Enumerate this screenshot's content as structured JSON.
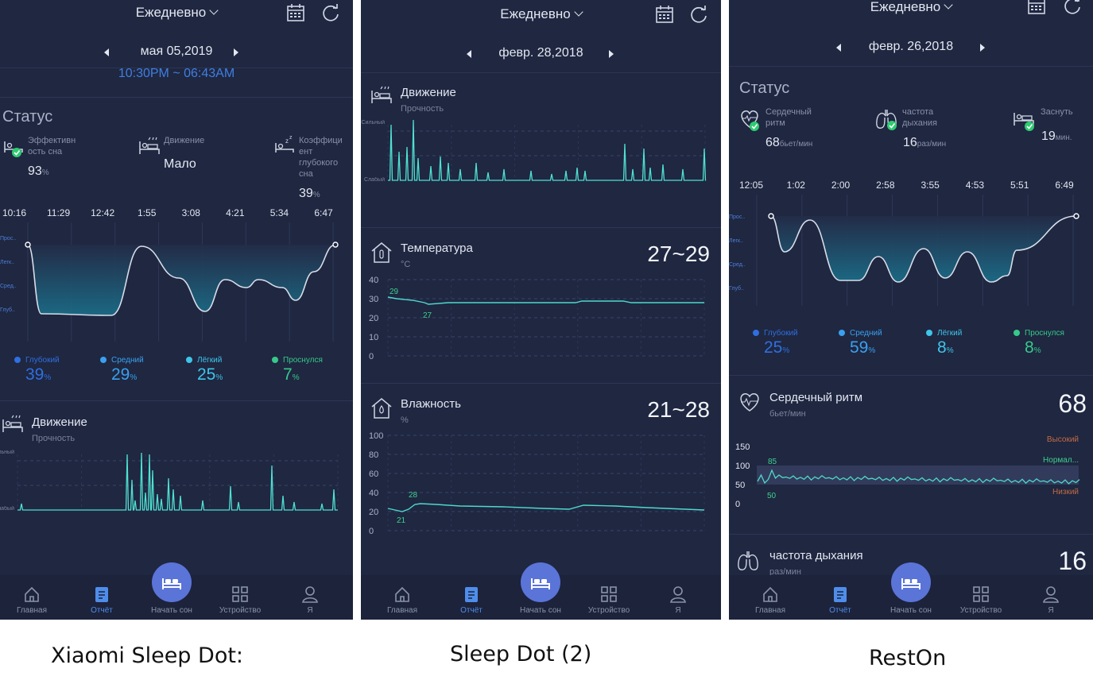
{
  "common": {
    "period": "Ежедневно",
    "nav": [
      "Главная",
      "Отчёт",
      "Начать сон",
      "Устройство",
      "Я"
    ]
  },
  "panel1": {
    "date": "мая 05,2019",
    "clipped_time": "10:30PM ~ 06:43AM",
    "status_title": "Статус",
    "metrics": [
      {
        "label": "Эффективн ость сна",
        "value": "93",
        "unit": "%"
      },
      {
        "label": "Движение",
        "value": "Мало",
        "unit": ""
      },
      {
        "label": "Коэффици ент глубокого сна",
        "value": "39",
        "unit": "%"
      }
    ],
    "times": [
      "10:16",
      "11:29",
      "12:42",
      "1:55",
      "3:08",
      "4:21",
      "5:34",
      "6:47"
    ],
    "levels": [
      "Прос..",
      "Легк..",
      "Сред..",
      "Глуб.."
    ],
    "legend": [
      {
        "label": "Глубокий",
        "value": "39",
        "color": "#2f6fe0"
      },
      {
        "label": "Средний",
        "value": "29",
        "color": "#3aa0ee"
      },
      {
        "label": "Лёгкий",
        "value": "25",
        "color": "#3fc4ea"
      },
      {
        "label": "Проснулся",
        "value": "7",
        "color": "#36c98a"
      }
    ],
    "motion": {
      "title": "Движение",
      "sub": "Прочность",
      "strong": "Сильный",
      "weak": "Слабый"
    }
  },
  "panel2": {
    "date": "февр. 28,2018",
    "motion": {
      "title": "Движение",
      "sub": "Прочность",
      "strong": "Сильный",
      "weak": "Слабый"
    },
    "temperature": {
      "title": "Температура",
      "unit": "°C",
      "range": "27~29",
      "max_label": "29",
      "min_label": "27",
      "ticks": [
        "40",
        "30",
        "20",
        "10",
        "0"
      ]
    },
    "humidity": {
      "title": "Влажность",
      "unit": "%",
      "range": "21~28",
      "max_label": "28",
      "min_label": "21",
      "ticks": [
        "100",
        "80",
        "60",
        "40",
        "20",
        "0"
      ]
    }
  },
  "panel3": {
    "period_clipped": "Ежедневно",
    "date": "февр. 26,2018",
    "status_title": "Статус",
    "metrics": [
      {
        "label": "Сердечный ритм",
        "value": "68",
        "unit": "бьет/мин"
      },
      {
        "label": "частота дыхания",
        "value": "16",
        "unit": "раз/мин"
      },
      {
        "label": "Заснуть",
        "value": "19",
        "unit": "мин."
      }
    ],
    "times": [
      "12:05",
      "1:02",
      "2:00",
      "2:58",
      "3:55",
      "4:53",
      "5:51",
      "6:49"
    ],
    "levels": [
      "Прос..",
      "Легк..",
      "Сред..",
      "Глуб.."
    ],
    "legend": [
      {
        "label": "Глубокий",
        "value": "25",
        "color": "#2f6fe0"
      },
      {
        "label": "Средний",
        "value": "59",
        "color": "#3aa0ee"
      },
      {
        "label": "Лёгкий",
        "value": "8",
        "color": "#3fc4ea"
      },
      {
        "label": "Проснулся",
        "value": "8",
        "color": "#36c98a"
      }
    ],
    "heart": {
      "title": "Сердечный ритм",
      "unit": "бьет/мин",
      "value": "68",
      "ticks": [
        "150",
        "100",
        "50",
        "0"
      ],
      "high": "Высокий",
      "normal": "Нормал...",
      "low": "Низкий",
      "max_label": "85",
      "min_label": "50"
    },
    "breath": {
      "title": "частота дыхания",
      "unit": "раз/мин",
      "value": "16"
    }
  },
  "captions": [
    "Xiaomi Sleep Dot:",
    "Sleep Dot (2)",
    "RestOn"
  ]
}
